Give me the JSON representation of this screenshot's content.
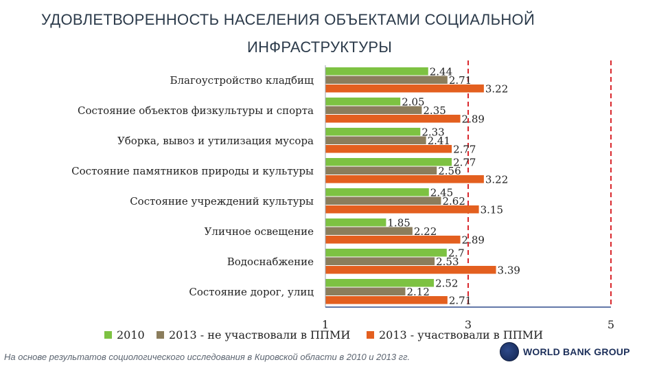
{
  "title": {
    "line1": "УДОВЛЕТВОРЕННОСТЬ НАСЕЛЕНИЯ ОБЪЕКТАМИ СОЦИАЛЬНОЙ",
    "line2": "ИНФРАСТРУКТУРЫ"
  },
  "footer": "На основе результатов социологического исследования в Кировской области в 2010 и 2013 гг.",
  "logo": "WORLD BANK GROUP",
  "colors": {
    "s2010": "#7dc242",
    "s2013a": "#8b7d5c",
    "s2013b": "#e35f1f",
    "refline": "#d9262b",
    "axis": "#2e4c8c"
  },
  "chart_data": {
    "type": "bar",
    "orientation": "horizontal",
    "categories": [
      "Благоустройство кладбищ",
      "Состояние объектов физкультуры и спорта",
      "Уборка, вывоз и утилизация мусора",
      "Состояние памятников природы и культуры",
      "Состояние учреждений культуры",
      "Уличное освещение",
      "Водоснабжение",
      "Состояние дорог, улиц"
    ],
    "series": [
      {
        "name": "2010",
        "values": [
          2.44,
          2.05,
          2.33,
          2.77,
          2.45,
          1.85,
          2.7,
          2.52
        ]
      },
      {
        "name": "2013 - не участвовали в ППМИ",
        "values": [
          2.71,
          2.35,
          2.41,
          2.56,
          2.62,
          2.22,
          2.53,
          2.12
        ]
      },
      {
        "name": "2013 - участвовали в ППМИ",
        "values": [
          3.22,
          2.89,
          2.77,
          3.22,
          3.15,
          2.89,
          3.39,
          2.71
        ]
      }
    ],
    "value_labels": [
      [
        "2.44",
        "2.05",
        "2.33",
        "2.77",
        "2.45",
        "1.85",
        "2.7",
        "2.52"
      ],
      [
        "2.71",
        "2.35",
        "2.41",
        "2.56",
        "2.62",
        "2.22",
        "2.53",
        "2.12"
      ],
      [
        "3.22",
        "2.89",
        "2.77",
        "3.22",
        "3.15",
        "2.89",
        "3.39",
        "2.71"
      ]
    ],
    "xlim": [
      1,
      5
    ],
    "xticks": [
      "1",
      "3",
      "5"
    ],
    "reference_lines": [
      3,
      5
    ],
    "legend": "bottom"
  }
}
